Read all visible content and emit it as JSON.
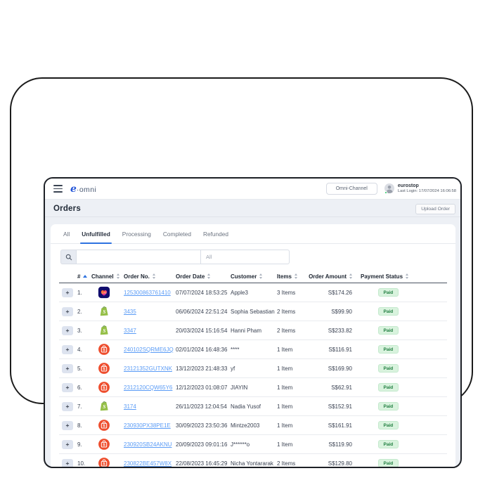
{
  "header": {
    "logo_accent": "e",
    "logo_name": "·omni",
    "channel_button": "Omni-Channel",
    "user": {
      "name": "eurostop",
      "last_login": "Last Login: 17/07/2024 16:06:58"
    }
  },
  "page": {
    "title": "Orders",
    "upload_button": "Upload Order"
  },
  "tabs": [
    {
      "label": "All",
      "active": false
    },
    {
      "label": "Unfulfilled",
      "active": true
    },
    {
      "label": "Processing",
      "active": false
    },
    {
      "label": "Completed",
      "active": false
    },
    {
      "label": "Refunded",
      "active": false
    }
  ],
  "search": {
    "value": "",
    "placeholder": "",
    "filter_value": "All"
  },
  "icons": {
    "menu": "hamburger-icon",
    "search": "search-icon",
    "avatar": "user-avatar-icon",
    "sort": "sort-carets-icon",
    "expand": "plus-icon",
    "channels": {
      "lazada": "lazada-icon",
      "shopify": "shopify-icon",
      "shopee": "shopee-icon"
    }
  },
  "table": {
    "columns": [
      "#",
      "Channel",
      "Order No.",
      "Order Date",
      "Customer",
      "Items",
      "Order Amount",
      "Payment Status"
    ],
    "sorted_column": "#",
    "sort_direction": "asc",
    "rows": [
      {
        "num": "1.",
        "channel": "lazada",
        "order_no": "125300863761410",
        "order_date": "07/07/2024 18:53:25",
        "customer": "Apple3",
        "items": "3 Items",
        "amount": "S$174.26",
        "status": "Paid"
      },
      {
        "num": "2.",
        "channel": "shopify",
        "order_no": "3435",
        "order_date": "06/06/2024 22:51:24",
        "customer": "Sophia Sebastian",
        "items": "2 Items",
        "amount": "S$99.90",
        "status": "Paid"
      },
      {
        "num": "3.",
        "channel": "shopify",
        "order_no": "3347",
        "order_date": "20/03/2024 15:16:54",
        "customer": "Hanni Pham",
        "items": "2 Items",
        "amount": "S$233.82",
        "status": "Paid"
      },
      {
        "num": "4.",
        "channel": "shopee",
        "order_no": "240102SQRME6JQ",
        "order_date": "02/01/2024 16:48:36",
        "customer": "****",
        "items": "1 Item",
        "amount": "S$116.91",
        "status": "Paid"
      },
      {
        "num": "5.",
        "channel": "shopee",
        "order_no": "23121352GUTXNK",
        "order_date": "13/12/2023 21:48:33",
        "customer": "yf",
        "items": "1 Item",
        "amount": "S$169.90",
        "status": "Paid"
      },
      {
        "num": "6.",
        "channel": "shopee",
        "order_no": "2312120CQW65Y6",
        "order_date": "12/12/2023 01:08:07",
        "customer": "JIAYIN",
        "items": "1 Item",
        "amount": "S$62.91",
        "status": "Paid"
      },
      {
        "num": "7.",
        "channel": "shopify",
        "order_no": "3174",
        "order_date": "26/11/2023 12:04:54",
        "customer": "Nadia Yusof",
        "items": "1 Item",
        "amount": "S$152.91",
        "status": "Paid"
      },
      {
        "num": "8.",
        "channel": "shopee",
        "order_no": "230930PX38PE1E",
        "order_date": "30/09/2023 23:50:36",
        "customer": "Mintze2003",
        "items": "1 Item",
        "amount": "S$161.91",
        "status": "Paid"
      },
      {
        "num": "9.",
        "channel": "shopee",
        "order_no": "230920SB24AKNU",
        "order_date": "20/09/2023 09:01:16",
        "customer": "J******o",
        "items": "1 Item",
        "amount": "S$119.90",
        "status": "Paid"
      },
      {
        "num": "10.",
        "channel": "shopee",
        "order_no": "230822BE457W8X",
        "order_date": "22/08/2023 16:45:29",
        "customer": "Nicha Yontararak",
        "items": "2 Items",
        "amount": "S$129.80",
        "status": "Paid"
      }
    ]
  },
  "colors": {
    "accent_blue": "#2e72e0",
    "link_blue": "#5b9cf6",
    "paid_bg": "#d9f3de",
    "paid_text": "#1f7d3f",
    "shopee_orange": "#EE4D2D",
    "shopify_green": "#95BF47",
    "lazada_navy": "#100c6d",
    "app_background": "#edf0f5"
  }
}
